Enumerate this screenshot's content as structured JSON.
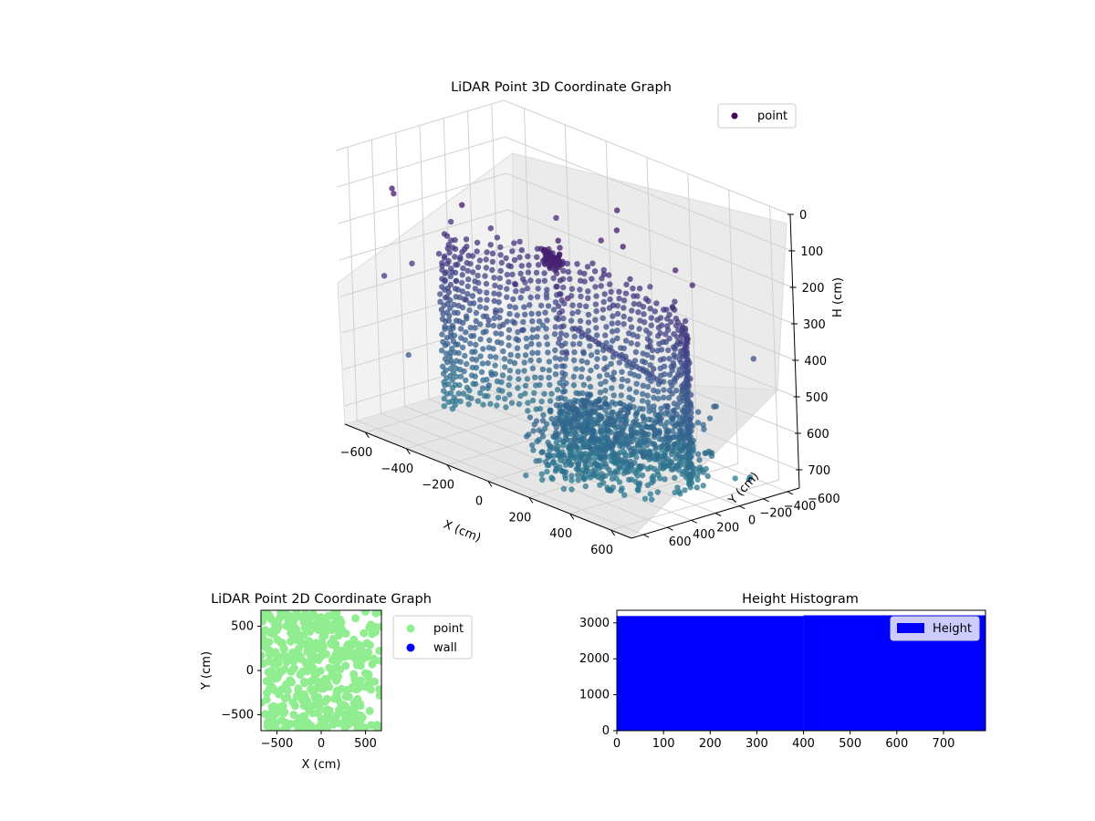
{
  "chart_data": [
    {
      "type": "scatter3d",
      "title": "LiDAR Point 3D Coordinate Graph",
      "xlabel": "X (cm)",
      "ylabel": "Y (cm)",
      "zlabel": "H (cm)",
      "xlim": [
        -700,
        700
      ],
      "ylim": [
        -700,
        700
      ],
      "zlim": [
        0,
        750
      ],
      "z_inverted": true,
      "xticks": [
        "−600",
        "−400",
        "−200",
        "0",
        "200",
        "400",
        "600"
      ],
      "yticks": [
        "−600",
        "−400",
        "−200",
        "0",
        "200",
        "400",
        "600"
      ],
      "zticks": [
        "0",
        "100",
        "200",
        "300",
        "400",
        "500",
        "600",
        "700"
      ],
      "legend": {
        "entries": [
          {
            "label": "point",
            "color": "#440154"
          }
        ],
        "placement": "upper-right"
      },
      "colormap": "viridis",
      "grid": true
    },
    {
      "type": "scatter",
      "title": "LiDAR Point 2D Coordinate Graph",
      "xlabel": "X (cm)",
      "ylabel": "Y (cm)",
      "xlim": [
        -680,
        680
      ],
      "ylim": [
        -680,
        680
      ],
      "xticks": [
        "−500",
        "0",
        "500"
      ],
      "yticks": [
        "−500",
        "0",
        "500"
      ],
      "series": [
        {
          "name": "point",
          "color": "#90ee90"
        },
        {
          "name": "wall",
          "color": "#0000ff"
        }
      ],
      "legend_placement": "outside-right"
    },
    {
      "type": "bar",
      "title": "Height Histogram",
      "series_name": "Height",
      "color": "#0000ff",
      "xlim": [
        0,
        790
      ],
      "ylim": [
        0,
        3350
      ],
      "xticks": [
        "0",
        "100",
        "200",
        "300",
        "400",
        "500",
        "600",
        "700"
      ],
      "yticks": [
        "0",
        "1000",
        "2000",
        "3000"
      ],
      "bins": [
        {
          "start": 0,
          "end": 400,
          "value": 3190
        },
        {
          "start": 400,
          "end": 790,
          "value": 3210
        }
      ],
      "legend_placement": "upper-right"
    }
  ]
}
